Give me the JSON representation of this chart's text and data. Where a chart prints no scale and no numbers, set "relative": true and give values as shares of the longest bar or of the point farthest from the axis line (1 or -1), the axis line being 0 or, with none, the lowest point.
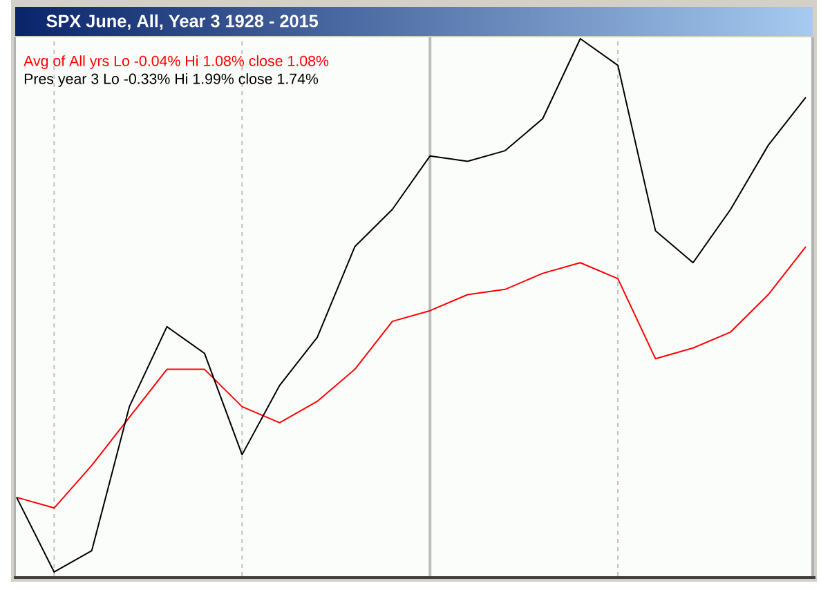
{
  "chart_data": {
    "type": "line",
    "title": "SPX June, All, Year 3 1928 - 2015",
    "categories": [
      null,
      null,
      null,
      null,
      null,
      null,
      null,
      null,
      null,
      null,
      null,
      null,
      null,
      null,
      null,
      null,
      null,
      null,
      null,
      null,
      null,
      null
    ],
    "relative": true,
    "series": [
      {
        "name": "Avg of All yrs Lo -0.04% Hi 1.08% close 1.08%",
        "color": "#ff0000",
        "values": [
          0.14,
          0.12,
          0.2,
          0.29,
          0.38,
          0.38,
          0.31,
          0.28,
          0.32,
          0.38,
          0.47,
          0.49,
          0.52,
          0.53,
          0.56,
          0.58,
          0.55,
          0.4,
          0.42,
          0.45,
          0.52,
          0.61
        ]
      },
      {
        "name": "Pres year 3 Lo -0.33% Hi 1.99% close 1.74%",
        "color": "#000000",
        "values": [
          0.14,
          0.0,
          0.04,
          0.31,
          0.46,
          0.41,
          0.22,
          0.35,
          0.44,
          0.61,
          0.68,
          0.78,
          0.77,
          0.79,
          0.85,
          1.0,
          0.95,
          0.64,
          0.58,
          0.68,
          0.8,
          0.89
        ]
      }
    ],
    "grid": "x",
    "legend": "top left"
  }
}
